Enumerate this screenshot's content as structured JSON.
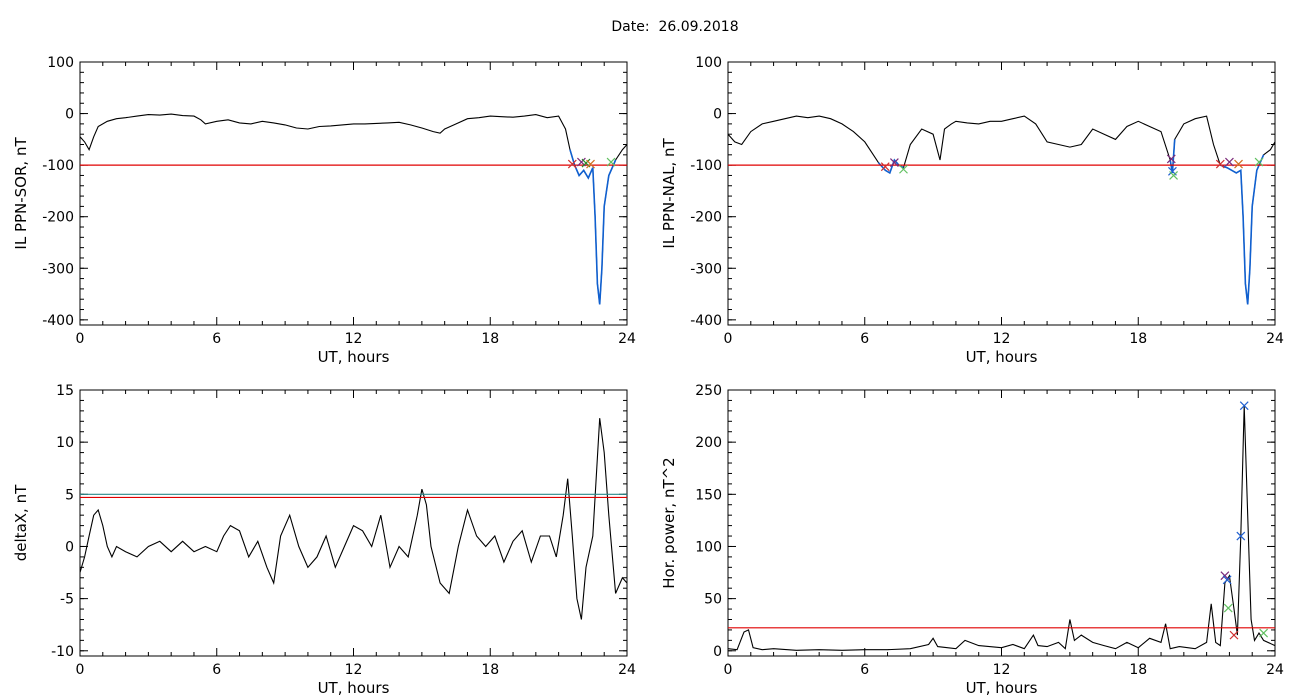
{
  "title": "Date:  26.09.2018",
  "colors": {
    "trace": "#000000",
    "threshold": "#e00000",
    "threshold2": "#2a8a8a",
    "highlight": "#1060d0"
  },
  "chart_data": [
    {
      "type": "line",
      "ylabel": "IL PPN-SOR, nT",
      "xlabel": "UT, hours",
      "xlim": [
        0,
        24
      ],
      "ylim": [
        -410,
        100
      ],
      "xticks": [
        0,
        6,
        12,
        18,
        24
      ],
      "yticks": [
        -400,
        -300,
        -200,
        -100,
        0,
        100
      ],
      "series": [
        {
          "x": [
            0,
            0.2,
            0.4,
            0.6,
            0.8,
            1.2,
            1.6,
            2,
            2.5,
            3,
            3.5,
            4,
            4.5,
            5,
            5.3,
            5.5,
            6,
            6.5,
            7,
            7.5,
            8,
            8.5,
            9,
            9.5,
            10,
            10.5,
            11,
            11.5,
            12,
            12.5,
            13,
            13.5,
            14,
            14.5,
            15,
            15.5,
            15.8,
            16,
            16.5,
            17,
            17.5,
            18,
            18.5,
            19,
            19.5,
            20,
            20.5,
            21,
            21.3,
            21.5,
            21.7,
            21.9,
            22.1,
            22.3,
            22.5,
            22.6,
            22.7,
            22.8,
            22.9,
            23,
            23.2,
            23.5,
            23.8,
            24
          ],
          "y": [
            -45,
            -55,
            -70,
            -45,
            -25,
            -15,
            -10,
            -8,
            -5,
            -2,
            -3,
            -1,
            -4,
            -5,
            -12,
            -20,
            -15,
            -12,
            -18,
            -20,
            -15,
            -18,
            -22,
            -28,
            -30,
            -25,
            -24,
            -22,
            -20,
            -20,
            -19,
            -18,
            -17,
            -22,
            -28,
            -35,
            -38,
            -30,
            -20,
            -10,
            -8,
            -5,
            -6,
            -7,
            -5,
            -2,
            -8,
            -5,
            -30,
            -70,
            -100,
            -120,
            -110,
            -125,
            -105,
            -200,
            -330,
            -370,
            -300,
            -180,
            -120,
            -90,
            -70,
            -60
          ]
        }
      ],
      "thresholds": [
        {
          "y": -100,
          "color": "threshold"
        }
      ],
      "highlight": {
        "x0": 21.4,
        "x1": 23.5
      },
      "markers": [
        {
          "x": 21.6,
          "y": -98,
          "color": "#d03030"
        },
        {
          "x": 22.0,
          "y": -94,
          "color": "#7a2a7a"
        },
        {
          "x": 22.2,
          "y": -96,
          "color": "#2a8a2a"
        },
        {
          "x": 22.4,
          "y": -98,
          "color": "#d07020"
        },
        {
          "x": 23.3,
          "y": -94,
          "color": "#60c060"
        }
      ]
    },
    {
      "type": "line",
      "ylabel": "IL PPN-NAL, nT",
      "xlabel": "UT, hours",
      "xlim": [
        0,
        24
      ],
      "ylim": [
        -410,
        100
      ],
      "xticks": [
        0,
        6,
        12,
        18,
        24
      ],
      "yticks": [
        -400,
        -300,
        -200,
        -100,
        0,
        100
      ],
      "series": [
        {
          "x": [
            0,
            0.3,
            0.6,
            1,
            1.5,
            2,
            2.5,
            3,
            3.5,
            4,
            4.5,
            5,
            5.5,
            6,
            6.3,
            6.6,
            6.9,
            7.1,
            7.3,
            7.5,
            7.7,
            8,
            8.5,
            9,
            9.3,
            9.5,
            9.8,
            10,
            10.5,
            11,
            11.5,
            12,
            12.5,
            13,
            13.5,
            14,
            14.5,
            15,
            15.5,
            16,
            16.5,
            17,
            17.5,
            18,
            18.5,
            19,
            19.4,
            19.5,
            19.6,
            19.8,
            20,
            20.5,
            21,
            21.3,
            21.6,
            21.9,
            22.1,
            22.3,
            22.5,
            22.6,
            22.7,
            22.8,
            22.9,
            23,
            23.2,
            23.5,
            23.8,
            24
          ],
          "y": [
            -40,
            -55,
            -60,
            -35,
            -20,
            -15,
            -10,
            -5,
            -8,
            -5,
            -10,
            -20,
            -35,
            -55,
            -75,
            -95,
            -110,
            -115,
            -90,
            -100,
            -105,
            -60,
            -30,
            -40,
            -90,
            -30,
            -20,
            -15,
            -18,
            -20,
            -15,
            -15,
            -10,
            -5,
            -20,
            -55,
            -60,
            -65,
            -60,
            -30,
            -40,
            -50,
            -25,
            -15,
            -25,
            -35,
            -90,
            -115,
            -50,
            -35,
            -20,
            -10,
            -5,
            -60,
            -100,
            -105,
            -110,
            -115,
            -110,
            -200,
            -330,
            -370,
            -300,
            -180,
            -110,
            -80,
            -70,
            -55
          ]
        }
      ],
      "thresholds": [
        {
          "y": -100,
          "color": "threshold"
        }
      ],
      "highlight": [
        {
          "x0": 6.6,
          "x1": 7.9
        },
        {
          "x0": 19.2,
          "x1": 19.7
        },
        {
          "x0": 21.4,
          "x1": 23.5
        }
      ],
      "markers": [
        {
          "x": 6.9,
          "y": -103,
          "color": "#d03030"
        },
        {
          "x": 7.3,
          "y": -95,
          "color": "#7a2a7a"
        },
        {
          "x": 7.7,
          "y": -108,
          "color": "#60c060"
        },
        {
          "x": 19.45,
          "y": -88,
          "color": "#7a2a7a"
        },
        {
          "x": 19.5,
          "y": -112,
          "color": "#2060d0"
        },
        {
          "x": 19.55,
          "y": -120,
          "color": "#60c060"
        },
        {
          "x": 21.6,
          "y": -98,
          "color": "#d03030"
        },
        {
          "x": 22.0,
          "y": -94,
          "color": "#7a2a7a"
        },
        {
          "x": 22.4,
          "y": -98,
          "color": "#d07020"
        },
        {
          "x": 23.3,
          "y": -94,
          "color": "#60c060"
        }
      ]
    },
    {
      "type": "line",
      "ylabel": "deltaX, nT",
      "xlabel": "UT, hours",
      "xlim": [
        0,
        24
      ],
      "ylim": [
        -10.5,
        15
      ],
      "xticks": [
        0,
        6,
        12,
        18,
        24
      ],
      "yticks": [
        -10,
        -5,
        0,
        5,
        10,
        15
      ],
      "series": [
        {
          "x": [
            0,
            0.2,
            0.4,
            0.6,
            0.8,
            1,
            1.2,
            1.4,
            1.6,
            2,
            2.5,
            3,
            3.5,
            4,
            4.5,
            5,
            5.5,
            6,
            6.3,
            6.6,
            7,
            7.4,
            7.8,
            8.2,
            8.5,
            8.8,
            9.2,
            9.6,
            10,
            10.4,
            10.8,
            11.2,
            11.6,
            12,
            12.4,
            12.8,
            13.2,
            13.6,
            14,
            14.4,
            14.8,
            15,
            15.2,
            15.4,
            15.8,
            16.2,
            16.6,
            17,
            17.4,
            17.8,
            18.2,
            18.6,
            19,
            19.4,
            19.8,
            20.2,
            20.6,
            20.9,
            21.2,
            21.4,
            21.6,
            21.8,
            22,
            22.2,
            22.5,
            22.8,
            23,
            23.2,
            23.5,
            23.8,
            24
          ],
          "y": [
            -2.5,
            -1,
            1,
            3,
            3.5,
            2,
            0,
            -1,
            0,
            -0.5,
            -1,
            0,
            0.5,
            -0.5,
            0.5,
            -0.5,
            0,
            -0.5,
            1,
            2,
            1.5,
            -1,
            0.5,
            -2,
            -3.5,
            1,
            3,
            0,
            -2,
            -1,
            1,
            -2,
            0,
            2,
            1.5,
            0,
            3,
            -2,
            0,
            -1,
            3,
            5.5,
            4,
            0,
            -3.5,
            -4.5,
            0,
            3.5,
            1,
            0,
            1,
            -1.5,
            0.5,
            1.5,
            -1.5,
            1,
            1,
            -1,
            3,
            6.5,
            1,
            -5,
            -7,
            -2,
            1,
            12.3,
            9,
            3,
            -4.5,
            -3,
            -3.5
          ]
        }
      ],
      "thresholds": [
        {
          "y": 5,
          "color": "threshold2"
        },
        {
          "y": 4.7,
          "color": "threshold"
        }
      ]
    },
    {
      "type": "line",
      "ylabel": "Hor. power, nT^2",
      "xlabel": "UT, hours",
      "xlim": [
        0,
        24
      ],
      "ylim": [
        -5,
        250
      ],
      "xticks": [
        0,
        6,
        12,
        18,
        24
      ],
      "yticks": [
        0,
        50,
        100,
        150,
        200,
        250
      ],
      "series": [
        {
          "x": [
            0,
            0.4,
            0.7,
            0.9,
            1.1,
            1.5,
            2,
            3,
            4,
            5,
            6,
            7,
            8,
            8.8,
            9,
            9.2,
            10,
            10.4,
            11,
            12,
            12.5,
            13,
            13.4,
            13.6,
            14,
            14.5,
            14.8,
            15,
            15.2,
            15.5,
            16,
            16.5,
            17,
            17.5,
            18,
            18.5,
            19,
            19.2,
            19.4,
            19.8,
            20.5,
            21,
            21.2,
            21.4,
            21.6,
            21.8,
            22,
            22.2,
            22.35,
            22.5,
            22.65,
            22.8,
            22.95,
            23.1,
            23.3,
            23.5,
            24
          ],
          "y": [
            2,
            1,
            18,
            20,
            3,
            1,
            2,
            0.5,
            1,
            0.5,
            1,
            1,
            2,
            6,
            12,
            4,
            2,
            10,
            5,
            3,
            6,
            2,
            15,
            5,
            4,
            8,
            2,
            30,
            10,
            15,
            8,
            5,
            2,
            8,
            3,
            12,
            8,
            26,
            2,
            4,
            2,
            8,
            45,
            8,
            5,
            65,
            72,
            40,
            15,
            110,
            235,
            130,
            30,
            10,
            17,
            10,
            5
          ]
        }
      ],
      "thresholds": [
        {
          "y": 22,
          "color": "threshold"
        }
      ],
      "markers": [
        {
          "x": 21.8,
          "y": 72,
          "color": "#7a2a7a"
        },
        {
          "x": 21.9,
          "y": 68,
          "color": "#2060d0"
        },
        {
          "x": 21.95,
          "y": 41,
          "color": "#60c060"
        },
        {
          "x": 22.2,
          "y": 15,
          "color": "#d03030"
        },
        {
          "x": 22.5,
          "y": 110,
          "color": "#2060d0"
        },
        {
          "x": 22.65,
          "y": 235,
          "color": "#2060d0"
        },
        {
          "x": 23.5,
          "y": 17,
          "color": "#60c060"
        }
      ]
    }
  ]
}
